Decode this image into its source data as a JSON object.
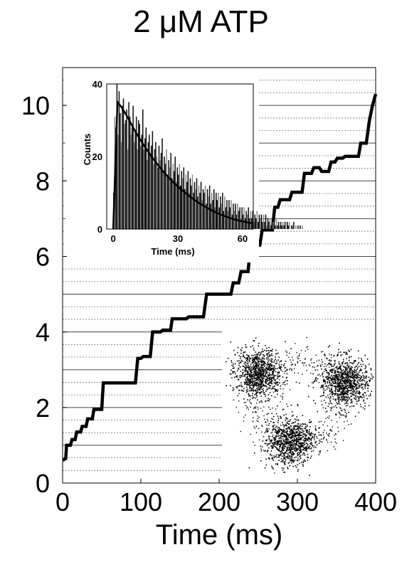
{
  "title": "2 μM ATP",
  "chart_data": [
    {
      "type": "line",
      "title": "2 μM ATP",
      "xlabel": "Time (ms)",
      "ylabel": "",
      "xlim": [
        0,
        400
      ],
      "ylim": [
        0,
        11
      ],
      "x_ticks": [
        0,
        100,
        200,
        300,
        400
      ],
      "y_ticks": [
        0,
        2,
        4,
        6,
        8,
        10
      ],
      "grid": "horizontal lines every 1/3 unit (solid at each integer, dotted between)",
      "series": [
        {
          "x": [
            0,
            4,
            5,
            10,
            12,
            16,
            18,
            23,
            25,
            30,
            32,
            38,
            40,
            50,
            52,
            60,
            63,
            93,
            96,
            100,
            103,
            112,
            115,
            125,
            128,
            138,
            140,
            158,
            161,
            180,
            184,
            196,
            200,
            215,
            218,
            225,
            228,
            237,
            240,
            252,
            255,
            268,
            271,
            275,
            278,
            290,
            293,
            306,
            309,
            318,
            321,
            328,
            331,
            340,
            343,
            348,
            351,
            358,
            361,
            378,
            381,
            388,
            392,
            396,
            400
          ],
          "y": [
            0.6,
            0.65,
            1.0,
            1.0,
            1.15,
            1.15,
            1.35,
            1.35,
            1.5,
            1.5,
            1.7,
            1.7,
            1.95,
            1.95,
            2.65,
            2.65,
            2.65,
            2.65,
            3.3,
            3.3,
            3.35,
            3.35,
            4.0,
            4.0,
            4.05,
            4.05,
            4.35,
            4.35,
            4.4,
            4.4,
            5.0,
            5.0,
            5.0,
            5.0,
            5.3,
            5.3,
            5.6,
            5.6,
            6.3,
            6.3,
            6.7,
            6.7,
            7.3,
            7.3,
            7.5,
            7.5,
            7.7,
            7.7,
            8.2,
            8.2,
            8.35,
            8.35,
            8.25,
            8.25,
            8.5,
            8.5,
            8.6,
            8.6,
            8.65,
            8.65,
            9.0,
            9.0,
            9.6,
            10.0,
            10.3
          ]
        }
      ]
    },
    {
      "type": "bar",
      "xlabel": "Time (ms)",
      "ylabel": "Counts",
      "xlim": [
        -3,
        65
      ],
      "ylim": [
        0,
        40
      ],
      "x_ticks": [
        0,
        30,
        60
      ],
      "y_ticks": [
        0,
        20,
        40
      ],
      "histogram": {
        "bin_width": 0.5,
        "x_start": 0,
        "values": [
          10,
          31,
          28,
          40,
          26,
          38,
          32,
          24,
          34,
          36,
          29,
          30,
          33,
          22,
          35,
          31,
          26,
          28,
          34,
          24,
          27,
          31,
          22,
          30,
          29,
          23,
          26,
          33,
          22,
          25,
          28,
          19,
          24,
          26,
          21,
          23,
          27,
          18,
          22,
          24,
          20,
          17,
          23,
          19,
          21,
          25,
          16,
          20,
          18,
          22,
          15,
          19,
          17,
          21,
          14,
          18,
          16,
          20,
          13,
          17,
          15,
          18,
          12,
          16,
          14,
          17,
          11,
          15,
          13,
          16,
          10,
          14,
          12,
          15,
          10,
          13,
          11,
          14,
          9,
          12,
          10,
          13,
          8,
          11,
          10,
          12,
          7,
          11,
          9,
          12,
          7,
          10,
          8,
          11,
          6,
          10,
          8,
          10,
          6,
          9,
          7,
          10,
          5,
          9,
          6,
          8,
          5,
          8,
          6,
          8,
          4,
          7,
          5,
          7,
          4,
          7,
          5,
          6,
          3,
          6,
          4,
          6,
          3,
          5,
          4,
          6,
          3,
          5,
          3,
          5,
          2,
          4,
          3,
          5,
          2,
          4,
          3,
          4,
          2,
          4,
          2,
          4,
          1,
          3,
          2,
          3,
          1,
          3,
          2,
          3,
          1,
          3,
          1,
          2,
          1,
          2,
          1,
          2,
          1,
          2,
          0,
          2,
          1,
          2,
          0,
          1,
          1,
          2,
          0,
          1,
          0,
          1,
          0,
          1,
          0,
          1
        ]
      },
      "fit": {
        "x": [
          0,
          2,
          4,
          6,
          8,
          10,
          12,
          15,
          18,
          21,
          24,
          27,
          30,
          33,
          36,
          40,
          44,
          48,
          52,
          56,
          60,
          64
        ],
        "y": [
          0,
          35.0,
          33.5,
          31.5,
          29.4,
          27.2,
          25.2,
          22.4,
          19.8,
          17.5,
          15.3,
          13.4,
          11.7,
          10.2,
          8.8,
          7.1,
          5.7,
          4.5,
          3.5,
          2.7,
          2.1,
          1.6
        ]
      }
    }
  ],
  "inset_scatter": {
    "type": "scatter",
    "clusters": 3
  }
}
